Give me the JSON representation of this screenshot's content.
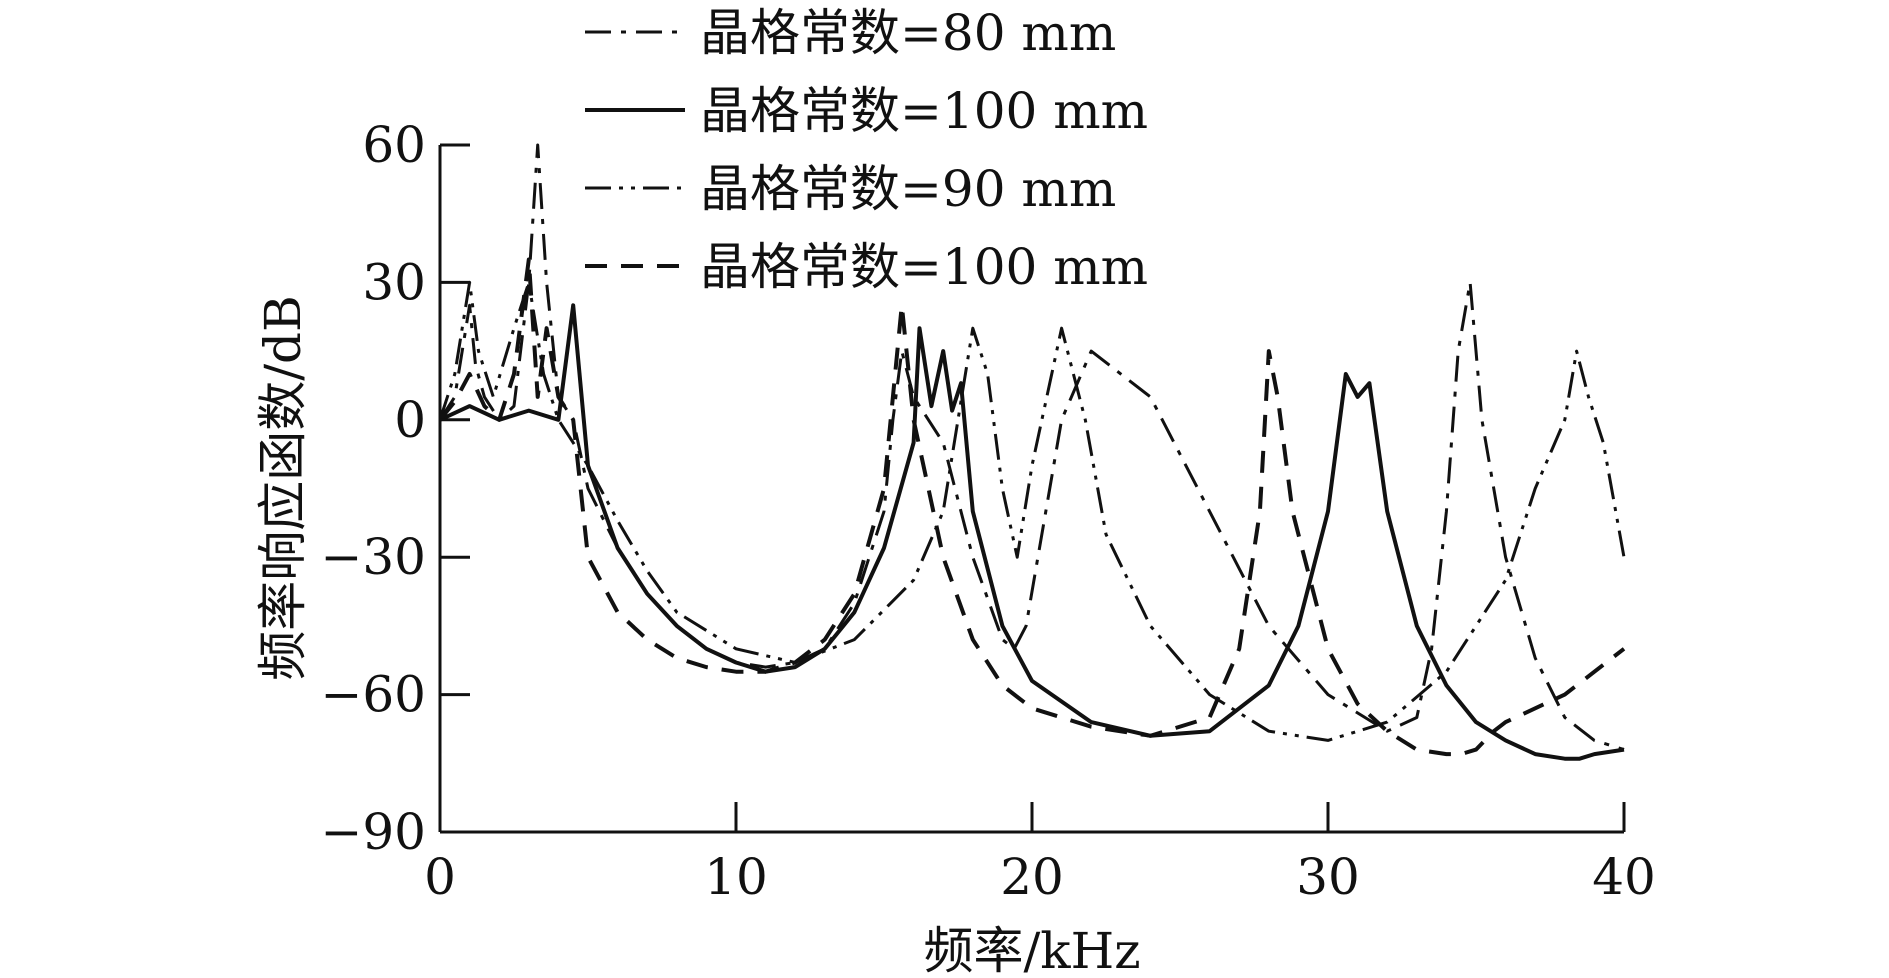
{
  "chart_data": {
    "type": "line",
    "xlabel": "频率/kHz",
    "ylabel": "频率响应函数/dB",
    "xlim": [
      0,
      40
    ],
    "ylim": [
      -90,
      60
    ],
    "x_ticks": [
      {
        "value": 0,
        "label": "0"
      },
      {
        "value": 10,
        "label": "10"
      },
      {
        "value": 20,
        "label": "20"
      },
      {
        "value": 30,
        "label": "30"
      },
      {
        "value": 40,
        "label": "40"
      }
    ],
    "y_ticks": [
      {
        "value": 60,
        "label": "60"
      },
      {
        "value": 30,
        "label": "30"
      },
      {
        "value": 0,
        "label": "0"
      },
      {
        "value": -30,
        "label": "−30"
      },
      {
        "value": -60,
        "label": "−60"
      },
      {
        "value": -90,
        "label": "−90"
      }
    ],
    "grid": false,
    "legend_position": "top",
    "series": [
      {
        "name": "晶格常数=80 mm",
        "dash": "dashdot",
        "stroke_width": 3,
        "x": [
          0,
          0.5,
          1.0,
          1.2,
          1.5,
          2.0,
          2.5,
          3.0,
          3.3,
          3.6,
          4.0,
          4.5,
          5.0,
          6.0,
          7.0,
          8.0,
          9.0,
          10.0,
          11.0,
          12.0,
          13.0,
          14.0,
          15.0,
          15.3,
          15.6,
          16.0,
          17.0,
          18.0,
          19.0,
          19.4,
          19.8,
          20.2,
          21.0,
          22.0,
          24.0,
          26.0,
          28.0,
          30.0,
          32.0,
          33.0,
          33.5,
          34.0,
          34.4,
          34.8,
          35.2,
          36.0,
          37.0,
          38.0,
          39.0,
          40.0
        ],
        "y": [
          0,
          5,
          25,
          12,
          5,
          0,
          3,
          30,
          60,
          30,
          5,
          0,
          -15,
          -28,
          -38,
          -45,
          -50,
          -53,
          -54,
          -53,
          -50,
          -40,
          -20,
          0,
          15,
          5,
          -5,
          -30,
          -48,
          -50,
          -45,
          -30,
          0,
          15,
          5,
          -20,
          -45,
          -60,
          -68,
          -65,
          -50,
          -20,
          15,
          30,
          0,
          -30,
          -52,
          -65,
          -70,
          -72
        ]
      },
      {
        "name": "晶格常数=100 mm",
        "dash": "solid",
        "stroke_width": 4,
        "x": [
          0,
          1.0,
          2.0,
          3.0,
          4.0,
          4.5,
          5.0,
          6.0,
          7.0,
          8.0,
          9.0,
          10.0,
          11.0,
          12.0,
          13.0,
          14.0,
          15.0,
          16.0,
          16.2,
          16.6,
          17.0,
          17.3,
          17.6,
          18.0,
          19.0,
          20.0,
          22.0,
          24.0,
          26.0,
          28.0,
          29.0,
          30.0,
          30.6,
          31.0,
          31.4,
          32.0,
          33.0,
          34.0,
          35.0,
          36.0,
          37.0,
          38.0,
          38.5,
          39.0,
          40.0
        ],
        "y": [
          0,
          3,
          0,
          2,
          0,
          25,
          -10,
          -28,
          -38,
          -45,
          -50,
          -53,
          -55,
          -54,
          -50,
          -42,
          -28,
          -5,
          20,
          3,
          15,
          2,
          8,
          -20,
          -45,
          -57,
          -66,
          -69,
          -68,
          -58,
          -45,
          -20,
          10,
          5,
          8,
          -20,
          -45,
          -58,
          -66,
          -70,
          -73,
          -74,
          -74,
          -73,
          -72
        ]
      },
      {
        "name": "晶格常数=90 mm",
        "dash": "dashdotdot",
        "stroke_width": 3,
        "x": [
          0,
          0.5,
          1.0,
          1.3,
          1.8,
          2.5,
          3.0,
          3.5,
          4.0,
          5.0,
          6.0,
          7.0,
          8.0,
          10.0,
          12.0,
          14.0,
          16.0,
          17.0,
          17.5,
          18.0,
          18.5,
          19.0,
          19.5,
          20.0,
          20.5,
          21.0,
          21.4,
          21.8,
          22.5,
          24.0,
          26.0,
          28.0,
          30.0,
          32.0,
          34.0,
          36.0,
          37.0,
          38.0,
          38.4,
          38.8,
          39.3,
          40.0
        ],
        "y": [
          0,
          10,
          30,
          15,
          5,
          20,
          30,
          10,
          0,
          -10,
          -22,
          -33,
          -42,
          -50,
          -53,
          -48,
          -35,
          -20,
          0,
          20,
          10,
          -15,
          -30,
          -10,
          5,
          20,
          10,
          0,
          -25,
          -45,
          -60,
          -68,
          -70,
          -66,
          -55,
          -35,
          -15,
          0,
          15,
          5,
          -5,
          -30
        ]
      },
      {
        "name": "晶格常数=100 mm",
        "dash": "dashed",
        "stroke_width": 4,
        "x": [
          0,
          0.5,
          1.0,
          1.5,
          2.0,
          2.5,
          3.0,
          3.3,
          3.6,
          4.0,
          4.5,
          5.0,
          6.0,
          7.0,
          8.0,
          9.0,
          10.0,
          11.0,
          12.0,
          13.0,
          14.0,
          15.0,
          15.3,
          15.6,
          16.0,
          17.0,
          18.0,
          19.0,
          20.0,
          22.0,
          24.0,
          26.0,
          27.0,
          27.7,
          28.0,
          28.3,
          28.8,
          30.0,
          31.0,
          32.0,
          33.0,
          34.0,
          34.5,
          35.0,
          35.3,
          35.6,
          36.0,
          37.0,
          38.0,
          39.0,
          40.0
        ],
        "y": [
          0,
          4,
          10,
          3,
          0,
          10,
          35,
          5,
          20,
          5,
          0,
          -30,
          -42,
          -48,
          -52,
          -54,
          -55,
          -55,
          -53,
          -48,
          -38,
          -15,
          5,
          25,
          0,
          -30,
          -48,
          -58,
          -63,
          -67,
          -69,
          -65,
          -50,
          -20,
          15,
          5,
          -20,
          -50,
          -62,
          -68,
          -72,
          -73,
          -73,
          -72,
          -70,
          -68,
          -66,
          -63,
          -60,
          -55,
          -50
        ]
      }
    ]
  }
}
